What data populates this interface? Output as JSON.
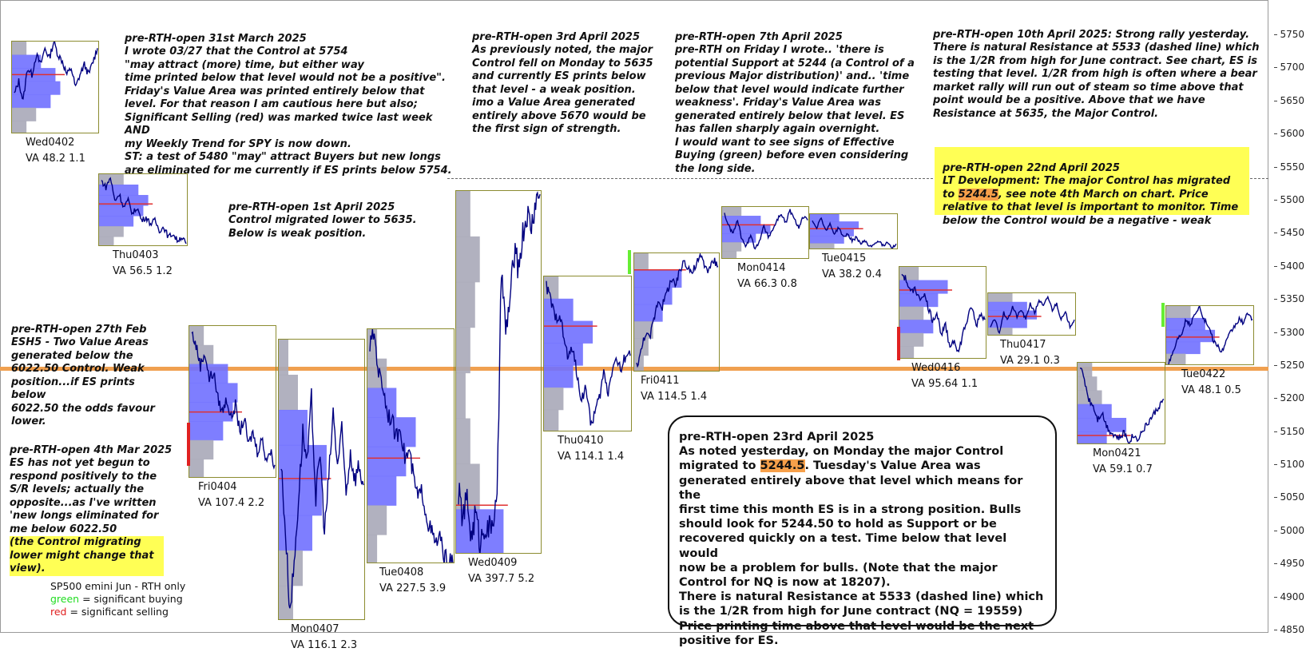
{
  "chart_data": {
    "type": "line",
    "instrument": "SP500 emini  Jun - RTH only",
    "y_ticks": [
      5750,
      5700,
      5650,
      5600,
      5550,
      5500,
      5450,
      5400,
      5350,
      5300,
      5250,
      5200,
      5150,
      5100,
      5050,
      5000,
      4950,
      4900,
      4850
    ],
    "ylim": [
      4835,
      5790
    ],
    "control_level": 5244.5,
    "resistance_level": 5533,
    "sessions": [
      {
        "name": "Wed0402",
        "va": "VA 48.2  1.1",
        "high": 5740,
        "low": 5600,
        "control": 5690,
        "volume_shape": [
          0.3,
          0.6,
          0.9,
          1.0,
          0.8,
          0.5,
          0.3
        ],
        "prices": [
          5660,
          5680,
          5650,
          5700,
          5690,
          5720,
          5705,
          5730,
          5715,
          5740,
          5720,
          5710,
          5690,
          5700,
          5670,
          5690,
          5705,
          5690,
          5710,
          5730
        ]
      },
      {
        "name": "Thu0403",
        "va": "VA 56.5  1.2",
        "high": 5540,
        "low": 5430,
        "control": 5495,
        "volume_shape": [
          0.5,
          0.8,
          1.0,
          0.9,
          0.7,
          0.5,
          0.3
        ],
        "prices": [
          5530,
          5520,
          5535,
          5500,
          5510,
          5490,
          5500,
          5480,
          5490,
          5470,
          5475,
          5465,
          5470,
          5455,
          5460,
          5445,
          5450,
          5440,
          5445,
          5435
        ]
      },
      {
        "name": "Fri0404",
        "va": "VA 107.4  2.2",
        "high": 5310,
        "low": 5080,
        "control": 5180,
        "volume_shape": [
          0.3,
          0.5,
          0.8,
          1.0,
          0.9,
          0.7,
          0.5,
          0.3
        ],
        "prices": [
          5300,
          5280,
          5250,
          5270,
          5230,
          5240,
          5200,
          5180,
          5200,
          5170,
          5190,
          5150,
          5170,
          5130,
          5150,
          5120,
          5140,
          5110,
          5120,
          5100
        ]
      },
      {
        "name": "Mon0407",
        "va": "VA 116.1  2.3",
        "high": 5290,
        "low": 4865,
        "control": 5080,
        "volume_shape": [
          0.2,
          0.4,
          0.6,
          1.0,
          0.9,
          0.7,
          0.5,
          0.3
        ],
        "prices": [
          5100,
          5000,
          4880,
          4950,
          5050,
          5150,
          5100,
          5200,
          5050,
          5120,
          5000,
          5080,
          5180,
          5100,
          5150,
          5060,
          5120,
          5080,
          5100,
          5070
        ]
      },
      {
        "name": "Tue0408",
        "va": "VA 227.5  3.9",
        "high": 5305,
        "low": 4950,
        "control": 5110,
        "volume_shape": [
          0.2,
          0.4,
          0.6,
          1.0,
          0.8,
          0.6,
          0.4,
          0.2
        ],
        "prices": [
          5280,
          5300,
          5240,
          5220,
          5180,
          5170,
          5140,
          5160,
          5110,
          5120,
          5080,
          5050,
          5060,
          5020,
          5000,
          4980,
          4990,
          4960,
          4955,
          4950
        ]
      },
      {
        "name": "Wed0409",
        "va": "VA 397.7  5.2",
        "high": 5515,
        "low": 4965,
        "control": 5040,
        "volume_shape": [
          0.3,
          0.5,
          0.4,
          0.3,
          0.2,
          0.3,
          0.5,
          1.0
        ],
        "prices": [
          5060,
          5020,
          5050,
          4990,
          5030,
          4980,
          5010,
          5000,
          5020,
          5040,
          5400,
          5300,
          5350,
          5420,
          5400,
          5450,
          5480,
          5460,
          5500,
          5510
        ]
      },
      {
        "name": "Thu0410",
        "va": "VA 114.1  1.4",
        "high": 5385,
        "low": 5150,
        "control": 5310,
        "volume_shape": [
          0.3,
          0.6,
          1.0,
          0.8,
          0.6,
          0.4,
          0.3
        ],
        "prices": [
          5370,
          5350,
          5320,
          5330,
          5290,
          5260,
          5280,
          5230,
          5200,
          5220,
          5160,
          5180,
          5200,
          5240,
          5210,
          5250,
          5260,
          5240,
          5270,
          5265
        ]
      },
      {
        "name": "Fri0411",
        "va": "VA 114.5  1.4",
        "high": 5420,
        "low": 5240,
        "control": 5395,
        "volume_shape": [
          0.3,
          1.0,
          0.8,
          0.6,
          0.4,
          0.3,
          0.2
        ],
        "prices": [
          5250,
          5270,
          5300,
          5290,
          5320,
          5350,
          5340,
          5360,
          5380,
          5370,
          5390,
          5410,
          5400,
          5390,
          5405,
          5415,
          5400,
          5395,
          5410,
          5400
        ]
      },
      {
        "name": "Mon0414",
        "va": "VA 66.3  0.8",
        "high": 5490,
        "low": 5410,
        "control": 5463,
        "volume_shape": [
          0.4,
          0.8,
          1.0,
          0.7,
          0.4,
          0.3
        ],
        "prices": [
          5480,
          5460,
          5450,
          5470,
          5440,
          5430,
          5450,
          5425,
          5440,
          5460,
          5445,
          5455,
          5470,
          5480,
          5465,
          5485,
          5470,
          5460,
          5475,
          5470
        ]
      },
      {
        "name": "Tue0415",
        "va": "VA 38.2  0.4",
        "high": 5480,
        "low": 5425,
        "control": 5458,
        "volume_shape": [
          0.6,
          1.0,
          0.9,
          0.7,
          0.5
        ],
        "prices": [
          5470,
          5460,
          5475,
          5455,
          5465,
          5450,
          5460,
          5445,
          5450,
          5440,
          5445,
          5435,
          5440,
          5430,
          5435,
          5440,
          5432,
          5438,
          5430,
          5435
        ]
      },
      {
        "name": "Wed0416",
        "va": "VA 95.64  1.1",
        "high": 5400,
        "low": 5260,
        "control": 5365,
        "volume_shape": [
          0.4,
          1.0,
          0.8,
          0.5,
          0.7,
          0.5,
          0.3
        ],
        "prices": [
          5390,
          5380,
          5360,
          5370,
          5350,
          5360,
          5340,
          5320,
          5330,
          5300,
          5310,
          5280,
          5290,
          5270,
          5300,
          5320,
          5340,
          5310,
          5330,
          5320
        ]
      },
      {
        "name": "Thu0417",
        "va": "VA 29.1  0.3",
        "high": 5360,
        "low": 5295,
        "control": 5325,
        "volume_shape": [
          0.5,
          0.8,
          1.0,
          0.8,
          0.5
        ],
        "prices": [
          5310,
          5320,
          5300,
          5330,
          5320,
          5340,
          5325,
          5335,
          5320,
          5345,
          5330,
          5350,
          5340,
          5355,
          5335,
          5345,
          5320,
          5330,
          5310,
          5320
        ]
      },
      {
        "name": "Mon0421",
        "va": "VA 59.1  0.7",
        "high": 5255,
        "low": 5130,
        "control": 5145,
        "volume_shape": [
          0.3,
          0.4,
          0.5,
          0.7,
          1.0,
          0.6
        ],
        "prices": [
          5250,
          5230,
          5200,
          5190,
          5170,
          5180,
          5160,
          5150,
          5145,
          5140,
          5150,
          5135,
          5145,
          5140,
          5150,
          5160,
          5170,
          5180,
          5190,
          5200
        ]
      },
      {
        "name": "Tue0422",
        "va": "VA 48.1  0.5",
        "high": 5340,
        "low": 5250,
        "control": 5293,
        "volume_shape": [
          0.5,
          0.8,
          1.0,
          0.7,
          0.4
        ],
        "prices": [
          5255,
          5270,
          5290,
          5300,
          5320,
          5310,
          5330,
          5340,
          5320,
          5310,
          5290,
          5280,
          5270,
          5285,
          5300,
          5310,
          5320,
          5315,
          5330,
          5320
        ]
      }
    ]
  },
  "notes": {
    "n0331": {
      "title": "pre-RTH-open 31st March 2025",
      "body": "I wrote 03/27 that the Control at 5754\n\"may attract (more) time, but either way\ntime printed below that level would not be a positive\".\nFriday's Value Area was printed entirely below that\nlevel. For that reason I am cautious here but also;\nSignificant Selling (red) was marked twice last week AND\nmy Weekly Trend for SPY is now down.\nST: a test of 5480 \"may\" attract Buyers but new longs\nare eliminated for me currently if ES prints below 5754."
    },
    "n0401": {
      "title": "pre-RTH-open 1st April 2025",
      "body": "Control migrated lower to 5635.\nBelow is  weak position."
    },
    "n0403": {
      "title": "pre-RTH-open 3rd April 2025",
      "body": "As previously noted, the major\nControl fell on Monday to 5635\nand currently ES prints below\nthat level - a weak position.\nimo a Value Area generated\nentirely above 5670 would be\nthe first sign of strength."
    },
    "n0407": {
      "title": "pre-RTH-open 7th April 2025",
      "body": "pre-RTH on Friday I wrote.. 'there is\npotential Support at 5244 (a Control of a\nprevious Major distribution)' and.. 'time\nbelow that level would indicate further\nweakness'. Friday's Value Area was\ngenerated entirely below that level. ES\nhas fallen sharply again overnight.\nI would want to see signs of Effective\nBuying (green) before even considering\nthe long side."
    },
    "n0410": {
      "title": "pre-RTH-open 10th April 2025:  Strong rally yesterday.",
      "body": "There is natural Resistance at 5533 (dashed line) which\nis the 1/2R from high for June contract. See chart, ES is\ntesting that level. 1/2R from high is often where a bear\nmarket rally will run out of steam so time above that\npoint would be a positive. Above that we have\nResistance at 5635, the Major Control."
    },
    "n0422": {
      "title": "pre-RTH-open 22nd April 2025",
      "line1": "LT Development: The major Control has migrated",
      "to": "to ",
      "hl": "5244.5",
      "line2rest": ", see note 4th March on chart. Price",
      "body": "relative to that level is important to monitor. Time\nbelow the Control would be a negative - weak"
    },
    "n0227": {
      "title": "pre-RTH-open 27th Feb",
      "body": "ESH5 - Two Value Areas\ngenerated below the\n6022.50 Control. Weak\nposition...if ES prints below\n6022.50 the odds favour\nlower."
    },
    "n0304": {
      "title": "pre-RTH-open 4th Mar 2025",
      "body": "ES has not yet begun to\nrespond positively to the\nS/R levels; actually the\nopposite...as I've written\n'new longs eliminated for\nme below 6022.50",
      "yellow": "(the Control migrating\nlower might change that\nview)."
    },
    "n0423": {
      "title": "pre-RTH-open 23rd April 2025",
      "l1": "As noted yesterday, on Monday the major Control",
      "l2a": "migrated to ",
      "hl": "5244.5",
      "l2b": ". Tuesday's Value Area was",
      "rest": "generated entirely above that level which means for the\nfirst time this month ES is in a strong position. Bulls\nshould look for 5244.50 to hold as Support or be\nrecovered quickly on a test. Time below that level would\nnow be a problem for bulls. (Note that the major\nControl for NQ is now at 18207).\nThere is natural Resistance at 5533 (dashed line) which\nis the 1/2R from high for June contract (NQ = 19559)\nPrice printing time above that level would be the next\npositive for ES."
    }
  },
  "legend": {
    "instrument": "SP500 emini  Jun - RTH only",
    "green_word": "green",
    "green_rest": " = significant buying",
    "red_word": "red",
    "red_rest": " = significant selling"
  },
  "colors": {
    "price_line": "#000080",
    "profile": "#7070ff",
    "profile_grey": "#a8a8b8",
    "control": "#e03030",
    "support": "#f0a050",
    "box": "#8c8c30",
    "buying": "#66ee33",
    "selling": "#e02020",
    "note_bg": "#ffff55",
    "highlight": "#f7a04a"
  }
}
